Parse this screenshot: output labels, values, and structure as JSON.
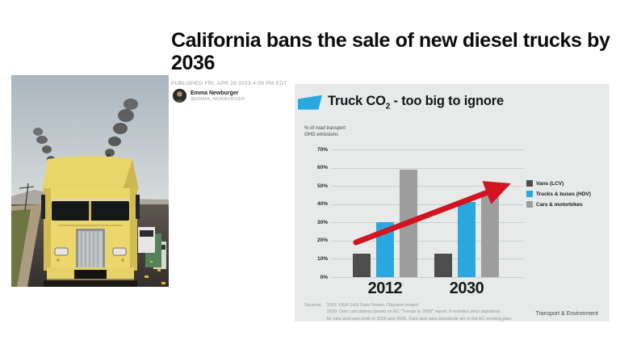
{
  "article": {
    "headline": "California bans the sale of new diesel trucks by 2036",
    "published": "PUBLISHED FRI, APR 28 2023-4:09 PM EDT",
    "author": {
      "name": "Emma Newburger",
      "handle": "@EMMA_NEWBURGER"
    }
  },
  "photo": {
    "description": "Yellow diesel semi truck emitting black exhaust smoke on a highway"
  },
  "chart": {
    "title_prefix": "Truck CO",
    "title_sub": "2",
    "title_suffix": " - too big to ignore",
    "ylabel_line1": "% of road transport",
    "ylabel_line2": "GHG emissions",
    "accent_blue": "#29a8e0",
    "arrow_red": "#d21420",
    "background": "#e7eae9"
  },
  "chart_data": {
    "type": "bar",
    "title": "Truck CO2 - too big to ignore",
    "xlabel": "",
    "ylabel": "% of road transport GHG emissions",
    "categories": [
      "2012",
      "2030"
    ],
    "series": [
      {
        "name": "Vans (LCV)",
        "color": "#4d4d4d",
        "values": [
          13,
          13
        ]
      },
      {
        "name": "Trucks & buses (HDV)",
        "color": "#29a8e0",
        "values": [
          30,
          41
        ]
      },
      {
        "name": "Cars & motorbikes",
        "color": "#9d9d9d",
        "values": [
          59,
          47
        ]
      }
    ],
    "ylim": [
      0,
      70
    ],
    "yticks": [
      "0%",
      "10%",
      "20%",
      "30%",
      "40%",
      "50%",
      "60%",
      "70%"
    ],
    "grid": true,
    "legend_position": "right",
    "annotations": [
      "red upward trend arrow from 2012 group to 2030 group"
    ]
  },
  "chart_footer": {
    "sources_label": "Sources:",
    "sources_lines": [
      "2012: EEA GHG Data Viewer, Odyssee project",
      "2030: Own calculations based on EC \"Trends to 2050\" report. It includes strict standards",
      "for cars and vans both in 2025 and 2030. Cars and vans standards are in the EC working plan."
    ],
    "credit": "Transport & Environment"
  }
}
